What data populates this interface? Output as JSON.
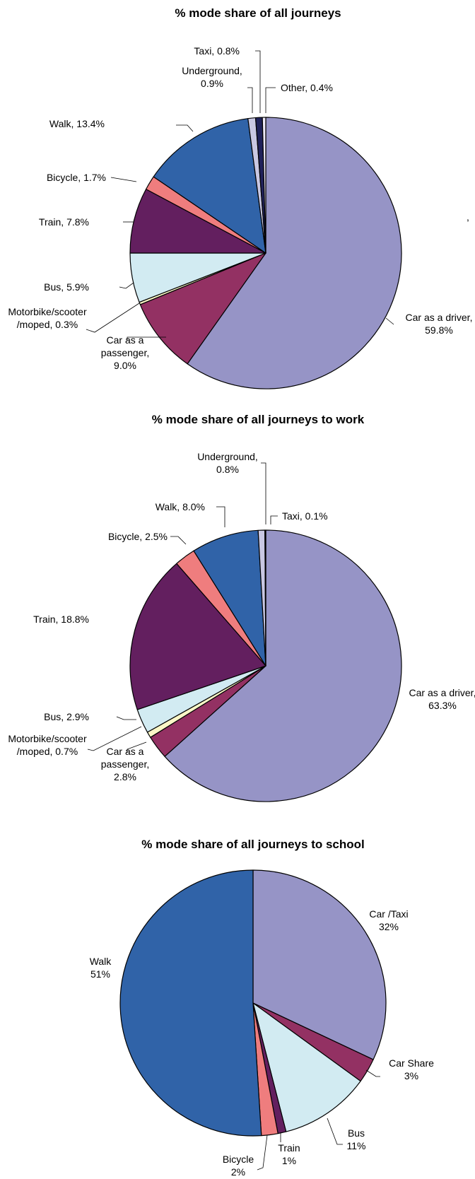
{
  "stray_mark": ",",
  "chart_data": [
    {
      "type": "pie",
      "title": "% mode share of all journeys",
      "slices": [
        {
          "label": [
            "Car as a driver,",
            "59.8%"
          ],
          "value": 59.8,
          "color": "#9694c6"
        },
        {
          "label": [
            "Car as a",
            "passenger,",
            "9.0%"
          ],
          "value": 9.0,
          "color": "#933163"
        },
        {
          "label": [
            "Motorbike/scooter",
            "/moped, 0.3%"
          ],
          "value": 0.3,
          "color": "#fbf7c7"
        },
        {
          "label": [
            "Bus, 5.9%"
          ],
          "value": 5.9,
          "color": "#d2ebf2"
        },
        {
          "label": [
            "Train, 7.8%"
          ],
          "value": 7.8,
          "color": "#631f5f"
        },
        {
          "label": [
            "Bicycle, 1.7%"
          ],
          "value": 1.7,
          "color": "#ef7d7e"
        },
        {
          "label": [
            "Walk, 13.4%"
          ],
          "value": 13.4,
          "color": "#3063a8"
        },
        {
          "label": [
            "Underground,",
            "0.9%"
          ],
          "value": 0.9,
          "color": "#c9c8e3"
        },
        {
          "label": [
            "Taxi, 0.8%"
          ],
          "value": 0.8,
          "color": "#20225a"
        },
        {
          "label": [
            "Other, 0.4%"
          ],
          "value": 0.4,
          "color": "#ede9f6"
        }
      ]
    },
    {
      "type": "pie",
      "title": "% mode share of all journeys to work",
      "slices": [
        {
          "label": [
            "Car as a driver,",
            "63.3%"
          ],
          "value": 63.3,
          "color": "#9694c6"
        },
        {
          "label": [
            "Car as a",
            "passenger,",
            "2.8%"
          ],
          "value": 2.8,
          "color": "#933163"
        },
        {
          "label": [
            "Motorbike/scooter",
            "/moped, 0.7%"
          ],
          "value": 0.7,
          "color": "#fbf7c7"
        },
        {
          "label": [
            "Bus, 2.9%"
          ],
          "value": 2.9,
          "color": "#d2ebf2"
        },
        {
          "label": [
            "Train, 18.8%"
          ],
          "value": 18.8,
          "color": "#631f5f"
        },
        {
          "label": [
            "Bicycle, 2.5%"
          ],
          "value": 2.5,
          "color": "#ef7d7e"
        },
        {
          "label": [
            "Walk, 8.0%"
          ],
          "value": 8.0,
          "color": "#3063a8"
        },
        {
          "label": [
            "Underground,",
            "0.8%"
          ],
          "value": 0.8,
          "color": "#c9c8e3"
        },
        {
          "label": [
            "Taxi, 0.1%"
          ],
          "value": 0.1,
          "color": "#20225a"
        }
      ]
    },
    {
      "type": "pie",
      "title": "% mode share of all journeys to school",
      "slices": [
        {
          "label": [
            "Car /Taxi",
            "32%"
          ],
          "value": 32,
          "color": "#9694c6"
        },
        {
          "label": [
            "Car Share",
            "3%"
          ],
          "value": 3,
          "color": "#933163"
        },
        {
          "label": [
            "Bus",
            "11%"
          ],
          "value": 11,
          "color": "#d2ebf2"
        },
        {
          "label": [
            "Train",
            "1%"
          ],
          "value": 1,
          "color": "#631f5f"
        },
        {
          "label": [
            "Bicycle",
            "2%"
          ],
          "value": 2,
          "color": "#ef7d7e"
        },
        {
          "label": [
            "Walk",
            "51%"
          ],
          "value": 51,
          "color": "#3063a8"
        }
      ]
    }
  ]
}
